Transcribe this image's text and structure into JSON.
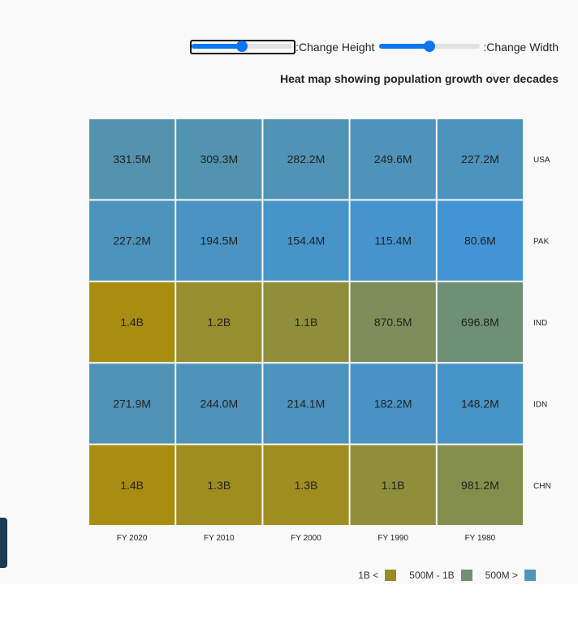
{
  "controls": {
    "height_label": ":Change Height",
    "width_label": ":Change Width",
    "height_value": 0.5,
    "width_value": 0.5
  },
  "chart_data": {
    "type": "heatmap",
    "title": "Heat map showing population growth over decades",
    "x_categories": [
      "FY 2020",
      "FY 2010",
      "FY 2000",
      "FY 1990",
      "FY 1980"
    ],
    "y_categories": [
      "USA",
      "PAK",
      "IND",
      "IDN",
      "CHN"
    ],
    "values_millions": [
      [
        331.5,
        309.3,
        282.2,
        249.6,
        227.2
      ],
      [
        227.2,
        194.5,
        154.4,
        115.4,
        80.6
      ],
      [
        1400,
        1200,
        1100,
        870.5,
        696.8
      ],
      [
        271.9,
        244.0,
        214.1,
        182.2,
        148.2
      ],
      [
        1400,
        1300,
        1300,
        1100,
        981.2
      ]
    ],
    "labels": [
      [
        "331.5M",
        "309.3M",
        "282.2M",
        "249.6M",
        "227.2M"
      ],
      [
        "227.2M",
        "194.5M",
        "154.4M",
        "115.4M",
        "80.6M"
      ],
      [
        "1.4B",
        "1.2B",
        "1.1B",
        "870.5M",
        "696.8M"
      ],
      [
        "271.9M",
        "244.0M",
        "214.1M",
        "182.2M",
        "148.2M"
      ],
      [
        "1.4B",
        "1.3B",
        "1.3B",
        "1.1B",
        "981.2M"
      ]
    ],
    "colors": {
      "low": "#4294d4",
      "mid": "#6e9073",
      "high": "#a88d11"
    },
    "legend_placement": "bottom-right",
    "legend": [
      {
        "label": "1B <",
        "color": "#9a8b26"
      },
      {
        "label": "500M - 1B",
        "color": "#6e9073"
      },
      {
        "label": "500M >",
        "color": "#4d96b9"
      }
    ]
  }
}
